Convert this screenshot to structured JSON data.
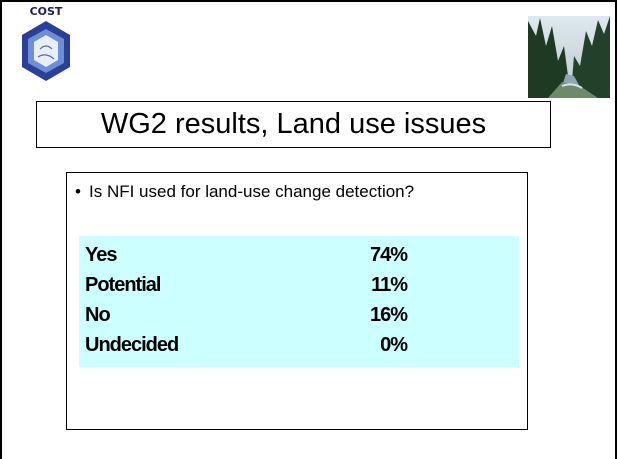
{
  "logo": {
    "text": "COST"
  },
  "title": "WG2 results, Land use issues",
  "bullet": "Is NFI used for land-use change detection?",
  "table": {
    "rows": [
      [
        "Yes",
        "74%"
      ],
      [
        "Potential",
        "11%"
      ],
      [
        "No",
        "16%"
      ],
      [
        "Undecided",
        "0%"
      ]
    ]
  }
}
